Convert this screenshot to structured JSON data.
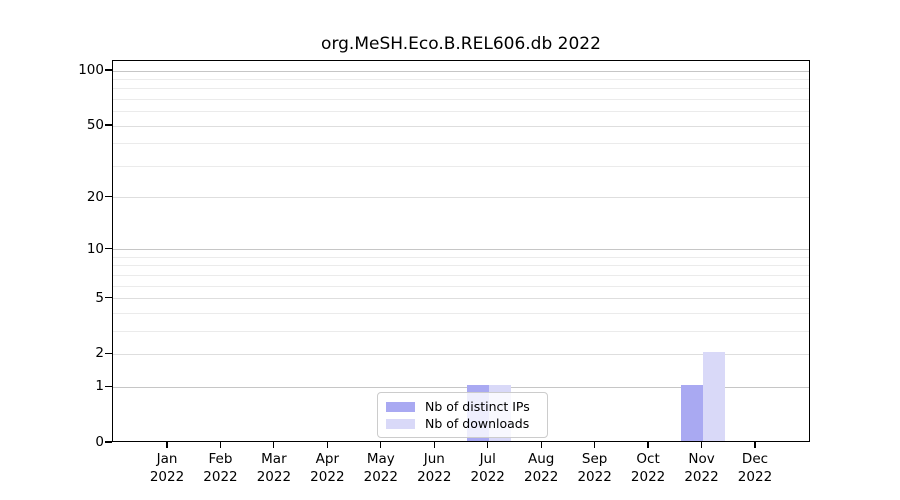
{
  "chart_data": {
    "type": "bar",
    "title": "org.MeSH.Eco.B.REL606.db 2022",
    "categories": [
      "Jan",
      "Feb",
      "Mar",
      "Apr",
      "May",
      "Jun",
      "Jul",
      "Aug",
      "Sep",
      "Oct",
      "Nov",
      "Dec"
    ],
    "category_year": "2022",
    "series": [
      {
        "name": "Nb of distinct IPs",
        "color": "#a9a9f2",
        "values": [
          0,
          0,
          0,
          0,
          0,
          0,
          1,
          0,
          0,
          0,
          1,
          0
        ]
      },
      {
        "name": "Nb of downloads",
        "color": "#d9d9f8",
        "values": [
          0,
          0,
          0,
          0,
          0,
          0,
          1,
          0,
          0,
          0,
          2,
          0
        ]
      }
    ],
    "xlabel": "",
    "ylabel": "",
    "yscale": "log1p",
    "ylim": [
      0,
      100
    ],
    "yticks": [
      0,
      1,
      2,
      5,
      10,
      20,
      50,
      100
    ],
    "major_gridlines": [
      1,
      10,
      100
    ],
    "minor_gridlines": [
      2,
      3,
      4,
      5,
      6,
      7,
      8,
      9,
      20,
      30,
      40,
      50,
      60,
      70,
      80,
      90
    ],
    "grid": true,
    "legend_position": "inside-bottom-center"
  },
  "colors": {
    "axis": "#000000",
    "major_grid": "#c6c6c6",
    "labeled_minor_grid": "#dedede",
    "minor_grid": "#ebebeb",
    "legend_border": "#cccccc",
    "text": "#000000"
  }
}
